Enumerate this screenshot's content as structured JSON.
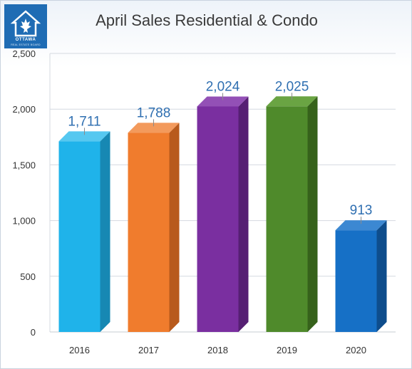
{
  "logo": {
    "text": "OTTAWA",
    "subtext": "REAL ESTATE BOARD"
  },
  "chart_data": {
    "type": "bar",
    "title": "April Sales Residential & Condo",
    "xlabel": "",
    "ylabel": "",
    "categories": [
      "2016",
      "2017",
      "2018",
      "2019",
      "2020"
    ],
    "values": [
      1711,
      1788,
      2024,
      2025,
      913
    ],
    "value_labels": [
      "1,711",
      "1,788",
      "2,024",
      "2,025",
      "913"
    ],
    "ylim": [
      0,
      2500
    ],
    "yticks": [
      0,
      500,
      1000,
      1500,
      2000,
      2500
    ],
    "ytick_labels": [
      "0",
      "500",
      "1,000",
      "1,500",
      "2,000",
      "2,500"
    ],
    "grid": true,
    "bar_colors": [
      "#1fb3ea",
      "#f07c2d",
      "#7a2fa0",
      "#4f8a2b",
      "#1670c6"
    ],
    "bar_side_colors": [
      "#1788b3",
      "#b85a1c",
      "#561f73",
      "#36621b",
      "#0e4d8c"
    ],
    "bar_top_colors": [
      "#56c8f0",
      "#f39a5c",
      "#9350b6",
      "#6aa443",
      "#3c88d2"
    ],
    "label_color": "#2f6fb1"
  }
}
